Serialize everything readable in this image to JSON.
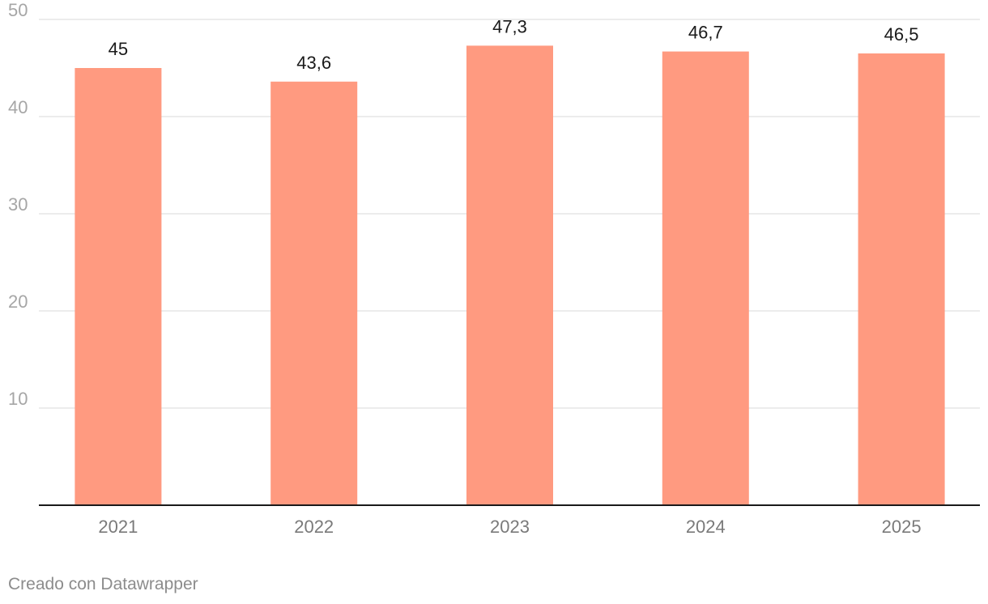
{
  "chart_data": {
    "type": "bar",
    "categories": [
      "2021",
      "2022",
      "2023",
      "2024",
      "2025"
    ],
    "values": [
      45,
      43.6,
      47.3,
      46.7,
      46.5
    ],
    "value_labels": [
      "45",
      "43,6",
      "47,3",
      "46,7",
      "46,5"
    ],
    "title": "",
    "xlabel": "",
    "ylabel": "",
    "ylim": [
      0,
      50
    ],
    "yticks": [
      10,
      20,
      30,
      40,
      50
    ],
    "ytick_labels": [
      "10",
      "20",
      "30",
      "40",
      "50"
    ],
    "grid": true,
    "bar_color": "#ff9a80",
    "grid_color": "#e0e0e0",
    "axis_color": "#1a1a1a",
    "tick_label_color": "#a6a6a6",
    "category_label_color": "#7a7a7a",
    "value_label_color": "#1a1a1a"
  },
  "footer": {
    "credit": "Creado con Datawrapper"
  }
}
